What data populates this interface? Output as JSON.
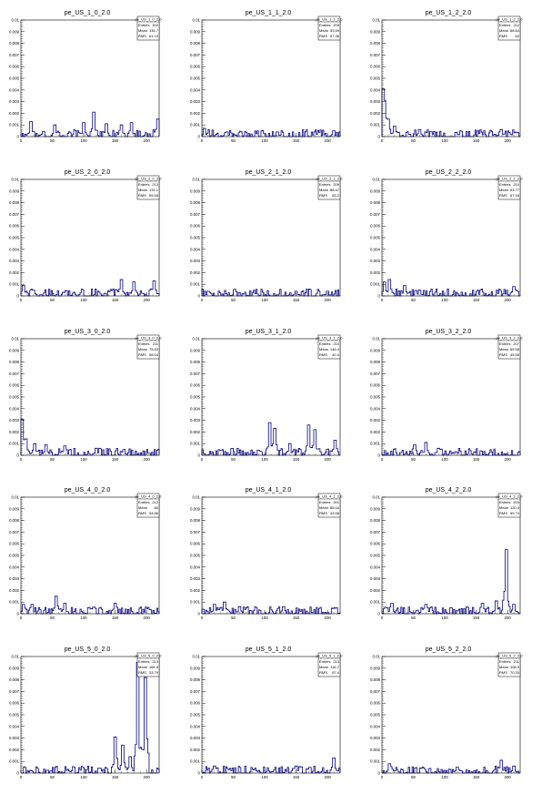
{
  "chart_data": [
    {
      "type": "histogram",
      "title": "pe_US_1_0_2.0",
      "stats": {
        "name": "pe_US_1_0_2.0",
        "entries": "202",
        "mean": "135.7",
        "rms": "61.19"
      },
      "ylim": [
        0,
        0.01
      ],
      "xlim": [
        0,
        220
      ],
      "peaks": [
        [
          16,
          0.0013
        ],
        [
          54,
          0.001
        ],
        [
          100,
          0.0012
        ],
        [
          116,
          0.0021
        ],
        [
          136,
          0.0011
        ],
        [
          160,
          0.001
        ],
        [
          176,
          0.0012
        ],
        [
          218,
          0.0015
        ]
      ]
    },
    {
      "type": "histogram",
      "title": "pe_US_1_1_2.0",
      "stats": {
        "name": "pe_US_1_1_2.0",
        "entries": "209",
        "mean": "59.59",
        "rms": "67.36"
      },
      "ylim": [
        0,
        0.01
      ],
      "xlim": [
        0,
        220
      ],
      "peaks": [
        [
          4,
          0.0007
        ],
        [
          40,
          0.0004
        ],
        [
          120,
          0.0004
        ],
        [
          210,
          0.0005
        ]
      ]
    },
    {
      "type": "histogram",
      "title": "pe_US_1_2_2.0",
      "stats": {
        "name": "pe_US_1_2_2.0",
        "entries": "212",
        "mean": "68.64",
        "rms": "62"
      },
      "ylim": [
        0,
        0.01
      ],
      "xlim": [
        0,
        220
      ],
      "peaks": [
        [
          2,
          0.0041
        ],
        [
          5,
          0.0031
        ],
        [
          10,
          0.0015
        ],
        [
          20,
          0.0009
        ],
        [
          60,
          0.0006
        ],
        [
          190,
          0.0006
        ]
      ]
    },
    {
      "type": "histogram",
      "title": "pe_US_2_0_2.0",
      "stats": {
        "name": "pe_US_2_0_2.0",
        "entries": "213",
        "mean": "131.1",
        "rms": "65.65"
      },
      "ylim": [
        0,
        0.01
      ],
      "xlim": [
        0,
        220
      ],
      "peaks": [
        [
          4,
          0.0009
        ],
        [
          20,
          0.0005
        ],
        [
          160,
          0.0014
        ],
        [
          180,
          0.0012
        ],
        [
          212,
          0.0013
        ]
      ]
    },
    {
      "type": "histogram",
      "title": "pe_US_2_1_2.0",
      "stats": {
        "name": "pe_US_2_1_2.0",
        "entries": "209",
        "mean": "88.47",
        "rms": "63.2"
      },
      "ylim": [
        0,
        0.01
      ],
      "xlim": [
        0,
        220
      ],
      "peaks": [
        [
          10,
          0.0004
        ],
        [
          150,
          0.0004
        ],
        [
          200,
          0.0004
        ]
      ]
    },
    {
      "type": "histogram",
      "title": "pe_US_2_2_2.0",
      "stats": {
        "name": "pe_US_2_2_2.0",
        "entries": "210",
        "mean": "63.77",
        "rms": "67.18"
      },
      "ylim": [
        0,
        0.01
      ],
      "xlim": [
        0,
        220
      ],
      "peaks": [
        [
          4,
          0.0012
        ],
        [
          12,
          0.0014
        ],
        [
          36,
          0.0009
        ],
        [
          60,
          0.0004
        ],
        [
          210,
          0.0008
        ]
      ]
    },
    {
      "type": "histogram",
      "title": "pe_US_3_0_2.0",
      "stats": {
        "name": "pe_US_3_0_2.0",
        "entries": "211",
        "mean": "75.83",
        "rms": "58.04"
      },
      "ylim": [
        0,
        0.01
      ],
      "xlim": [
        0,
        220
      ],
      "peaks": [
        [
          2,
          0.0031
        ],
        [
          8,
          0.0014
        ],
        [
          22,
          0.001
        ],
        [
          40,
          0.0009
        ],
        [
          70,
          0.0008
        ],
        [
          120,
          0.0006
        ]
      ]
    },
    {
      "type": "histogram",
      "title": "pe_US_3_1_2.0",
      "stats": {
        "name": "pe_US_3_1_2.0",
        "entries": "214",
        "mean": "146.4",
        "rms": "40.4"
      },
      "ylim": [
        0,
        0.01
      ],
      "xlim": [
        0,
        220
      ],
      "peaks": [
        [
          108,
          0.0028
        ],
        [
          116,
          0.0023
        ],
        [
          140,
          0.001
        ],
        [
          170,
          0.0026
        ],
        [
          180,
          0.0022
        ],
        [
          212,
          0.0013
        ]
      ]
    },
    {
      "type": "histogram",
      "title": "pe_US_3_2_2.0",
      "stats": {
        "name": "pe_US_3_2_2.0",
        "entries": "207",
        "mean": "69.58",
        "rms": "45.58"
      },
      "ylim": [
        0,
        0.01
      ],
      "xlim": [
        0,
        220
      ],
      "peaks": [
        [
          52,
          0.0009
        ],
        [
          70,
          0.0011
        ],
        [
          90,
          0.0006
        ],
        [
          140,
          0.0004
        ]
      ]
    },
    {
      "type": "histogram",
      "title": "pe_US_4_0_2.0",
      "stats": {
        "name": "pe_US_4_0_2.0",
        "entries": "212",
        "mean": "80",
        "rms": "54.86"
      },
      "ylim": [
        0,
        0.01
      ],
      "xlim": [
        0,
        220
      ],
      "peaks": [
        [
          4,
          0.0008
        ],
        [
          18,
          0.0008
        ],
        [
          56,
          0.0015
        ],
        [
          70,
          0.0009
        ],
        [
          150,
          0.0009
        ]
      ]
    },
    {
      "type": "histogram",
      "title": "pe_US_4_1_2.0",
      "stats": {
        "name": "pe_US_4_1_2.0",
        "entries": "201",
        "mean": "85.04",
        "rms": "43.58"
      },
      "ylim": [
        0,
        0.01
      ],
      "xlim": [
        0,
        220
      ],
      "peaks": [
        [
          20,
          0.0008
        ],
        [
          36,
          0.001
        ],
        [
          60,
          0.0006
        ],
        [
          130,
          0.0006
        ]
      ]
    },
    {
      "type": "histogram",
      "title": "pe_US_4_2_2.0",
      "stats": {
        "name": "pe_US_4_2_2.0",
        "entries": "203",
        "mean": "120.4",
        "rms": "59.74"
      },
      "ylim": [
        0,
        0.01
      ],
      "xlim": [
        0,
        220
      ],
      "peaks": [
        [
          16,
          0.0009
        ],
        [
          70,
          0.0008
        ],
        [
          160,
          0.0009
        ],
        [
          182,
          0.0011
        ],
        [
          198,
          0.0055
        ],
        [
          210,
          0.0008
        ]
      ]
    },
    {
      "type": "histogram",
      "title": "pe_US_5_0_2.0",
      "stats": {
        "name": "pe_US_5_0_2.0",
        "entries": "213",
        "mean": "164.9",
        "rms": "33.79"
      },
      "ylim": [
        0,
        0.01
      ],
      "xlim": [
        0,
        220
      ],
      "peaks": [
        [
          150,
          0.0031
        ],
        [
          162,
          0.0024
        ],
        [
          174,
          0.0014
        ],
        [
          186,
          0.0095
        ],
        [
          198,
          0.0082
        ]
      ]
    },
    {
      "type": "histogram",
      "title": "pe_US_5_1_2.0",
      "stats": {
        "name": "pe_US_5_1_2.0",
        "entries": "213",
        "mean": "116.7",
        "rms": "67.4"
      },
      "ylim": [
        0,
        0.01
      ],
      "xlim": [
        0,
        220
      ],
      "peaks": [
        [
          20,
          0.0006
        ],
        [
          150,
          0.0006
        ],
        [
          210,
          0.0013
        ]
      ]
    },
    {
      "type": "histogram",
      "title": "pe_US_5_2_2.0",
      "stats": {
        "name": "pe_US_5_2_2.0",
        "entries": "211",
        "mean": "108.3",
        "rms": "70.33"
      },
      "ylim": [
        0,
        0.01
      ],
      "xlim": [
        0,
        220
      ],
      "peaks": [
        [
          12,
          0.0008
        ],
        [
          120,
          0.0005
        ],
        [
          190,
          0.0011
        ],
        [
          210,
          0.0006
        ]
      ]
    }
  ],
  "axis": {
    "yticks": [
      "0",
      "0.001",
      "0.002",
      "0.003",
      "0.004",
      "0.005",
      "0.006",
      "0.007",
      "0.008",
      "0.009",
      "0.01"
    ],
    "xticks": [
      "0",
      "50",
      "100",
      "150",
      "200"
    ],
    "stat_labels": {
      "entries": "Entries",
      "mean": "Mean",
      "rms": "RMS"
    }
  },
  "colors": {
    "line": "#000080",
    "frame": "#000000",
    "background": "#ffffff"
  }
}
